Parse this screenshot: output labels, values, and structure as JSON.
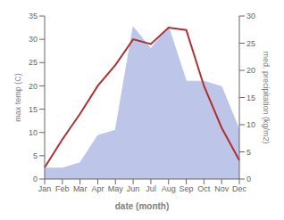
{
  "chart_data": {
    "type": "line",
    "categories": [
      "Jan",
      "Feb",
      "Mar",
      "Apr",
      "May",
      "Jun",
      "Jul",
      "Aug",
      "Sep",
      "Oct",
      "Nov",
      "Dec"
    ],
    "series": [
      {
        "type": "area",
        "axis": "y2",
        "color": "#bdc5e8",
        "values": [
          2,
          2,
          3,
          8,
          9,
          28,
          24,
          28,
          18,
          18,
          17,
          9
        ]
      },
      {
        "type": "line",
        "axis": "y",
        "color": "#b03030",
        "values": [
          2.5,
          8.5,
          14,
          20,
          24.5,
          30,
          29,
          32.5,
          32,
          20,
          11,
          4
        ]
      }
    ],
    "xlabel": "date (month)",
    "ylabel": "max temp (C)",
    "y2label": "med. precipitation (kg/m2)",
    "ylim": [
      0,
      35
    ],
    "yticks": [
      0,
      5,
      10,
      15,
      20,
      25,
      30,
      35
    ],
    "y2lim": [
      0,
      30
    ],
    "y2ticks": [
      0,
      5,
      10,
      15,
      20,
      25,
      30
    ],
    "grid": false
  }
}
